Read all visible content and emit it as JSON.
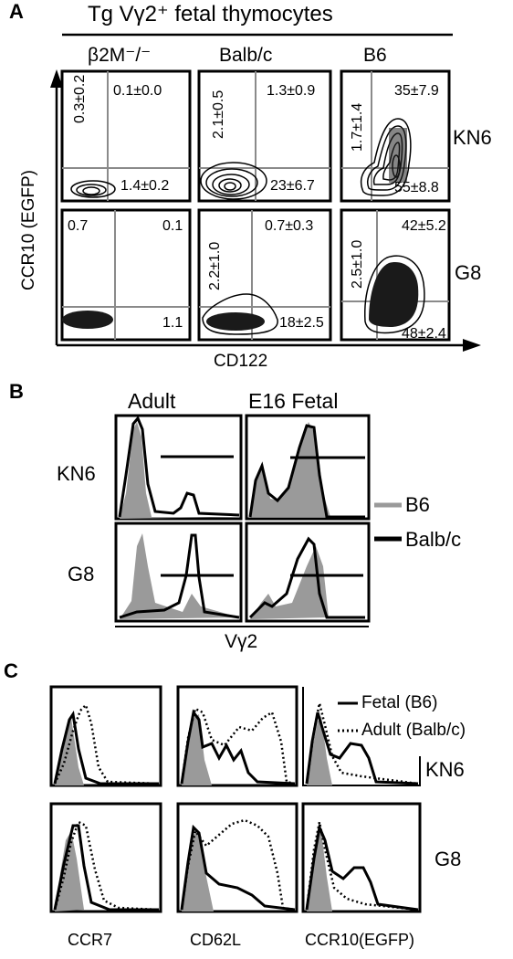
{
  "panelA": {
    "letter": "A",
    "title": "Tg Vγ2⁺ fetal thymocytes",
    "col_headers": [
      "β2M⁻/⁻",
      "Balb/c",
      "B6"
    ],
    "row_labels": [
      "KN6",
      "G8"
    ],
    "y_axis": "CCR10 (EGFP)",
    "x_axis": "CD122",
    "kn6": {
      "b2m": {
        "ul": "0.3±0.2",
        "ur": "0.1±0.0",
        "lr": "1.4±0.2"
      },
      "balb": {
        "ul": "2.1±0.5",
        "ur": "1.3±0.9",
        "lr": "23±6.7"
      },
      "b6": {
        "ul": "1.7±1.4",
        "ur": "35±7.9",
        "lr": "55±8.8"
      }
    },
    "g8": {
      "b2m": {
        "ul": "0.7",
        "ur": "0.1",
        "lr": "1.1"
      },
      "balb": {
        "ul": "2.2±1.0",
        "ur": "0.7±0.3",
        "lr": "18±2.5"
      },
      "b6": {
        "ul": "2.5±1.0",
        "ur": "42±5.2",
        "lr": "48±2.4"
      }
    }
  },
  "panelB": {
    "letter": "B",
    "col_headers": [
      "Adult",
      "E16 Fetal"
    ],
    "row_labels": [
      "KN6",
      "G8"
    ],
    "x_axis": "Vγ2",
    "legend": [
      {
        "label": "B6",
        "color": "#9a9a9a"
      },
      {
        "label": "Balb/c",
        "color": "#000000"
      }
    ]
  },
  "panelC": {
    "letter": "C",
    "legend": [
      {
        "label": "Fetal (B6)",
        "style": "solid"
      },
      {
        "label": "Adult (Balb/c)",
        "style": "dotted"
      }
    ],
    "row_labels": [
      "KN6",
      "G8"
    ],
    "x_labels": [
      "CCR7",
      "CD62L",
      "CCR10(EGFP)"
    ]
  }
}
